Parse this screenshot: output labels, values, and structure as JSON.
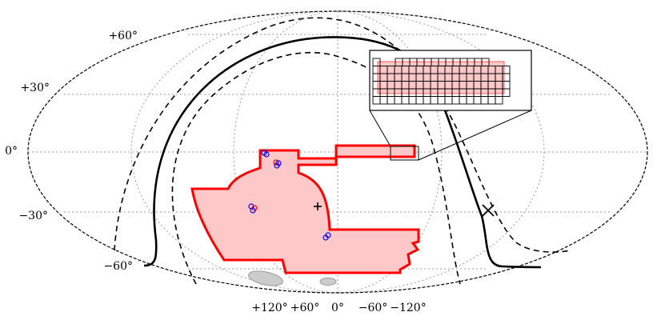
{
  "projection": "mollweide",
  "grid": true,
  "colors": {
    "footprint_stroke": "#ff0000",
    "footprint_fill": "#ffc8c8",
    "galactic_plane": "#000000",
    "gridline": "#999999",
    "magellanic_clouds": "#cccccc",
    "marker_blue": "#0000ff",
    "marker_red": "#ff0000"
  },
  "lat_labels": [
    "+60°",
    "+30°",
    "0°",
    "−30°",
    "−60°"
  ],
  "lon_labels": [
    "+120°",
    "+60°",
    "0°",
    "−60°",
    "−120°"
  ],
  "markers": [
    {
      "type": "plus",
      "meaning": "field center"
    },
    {
      "type": "x",
      "meaning": "galactic pole"
    }
  ]
}
